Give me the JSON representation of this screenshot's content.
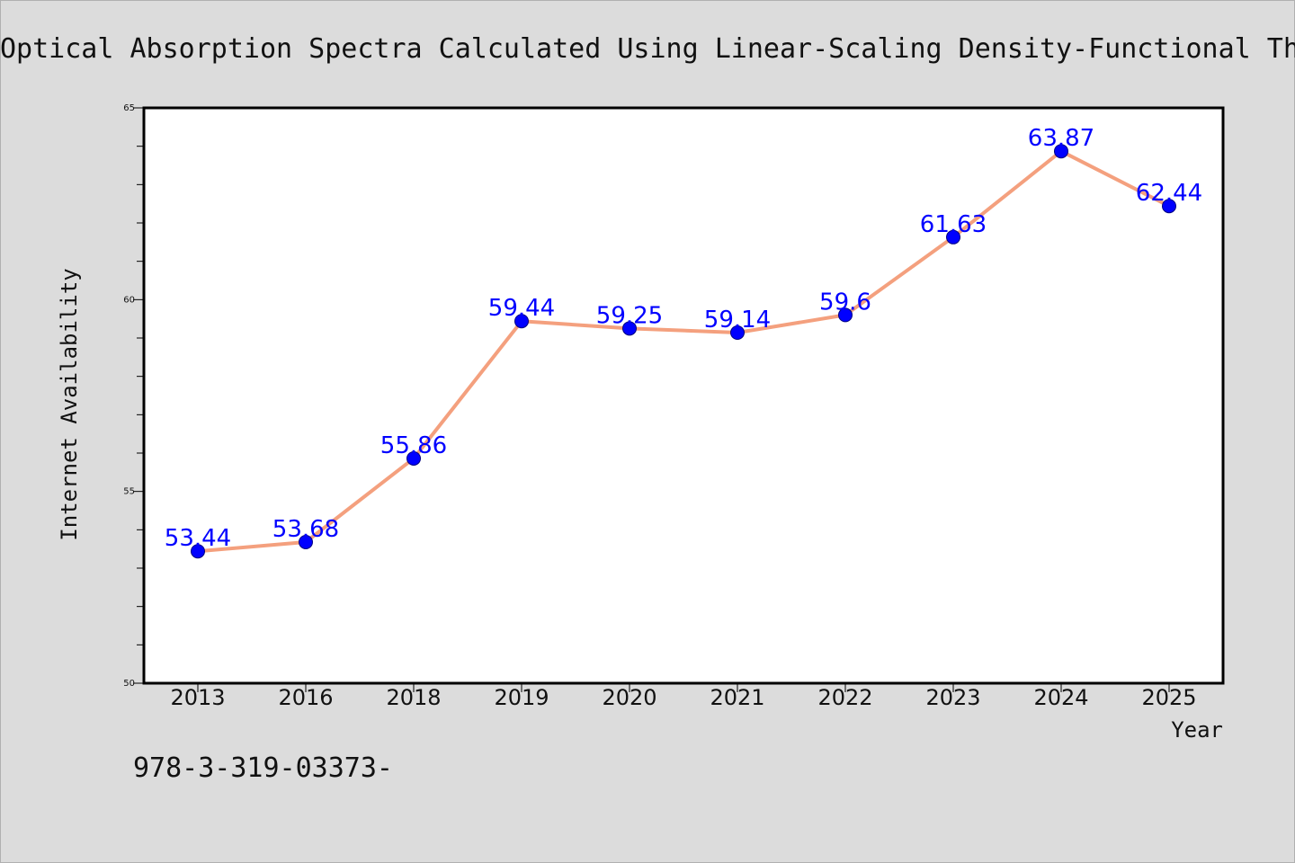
{
  "colors": {
    "background": "#dcdcdc",
    "plot_background": "#ffffff",
    "line": "#f4a07e",
    "marker": "#0000ff",
    "marker_edge": "#000080",
    "data_label": "#0000ff"
  },
  "annotation": "978-3-319-03373-",
  "chart_data": {
    "type": "line",
    "title": "Optical Absorption Spectra Calculated Using Linear-Scaling Density-Functional Th",
    "xlabel": "Year",
    "ylabel": "Internet Availability",
    "categories": [
      "2013",
      "2016",
      "2018",
      "2019",
      "2020",
      "2021",
      "2022",
      "2023",
      "2024",
      "2025"
    ],
    "values": [
      53.44,
      53.68,
      55.86,
      59.44,
      59.25,
      59.14,
      59.6,
      61.63,
      63.87,
      62.44
    ],
    "data_labels": [
      "53.44",
      "53.68",
      "55.86",
      "59.44",
      "59.25",
      "59.14",
      "59.6",
      "61.63",
      "63.87",
      "62.44"
    ],
    "ylim": [
      50,
      65
    ],
    "yticks_major": [
      "50",
      "55",
      "60",
      "65"
    ],
    "grid": false,
    "legend": "none"
  }
}
